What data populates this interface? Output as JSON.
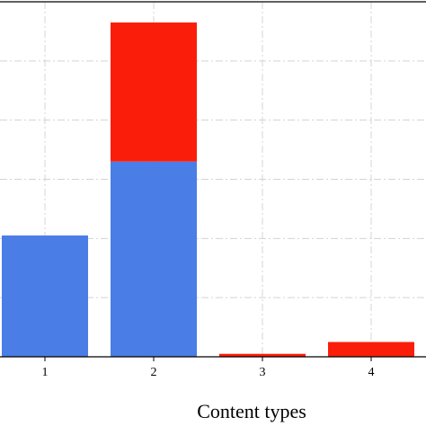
{
  "chart_data": {
    "type": "bar",
    "stacked": true,
    "categories": [
      "1",
      "2",
      "3",
      "4"
    ],
    "series": [
      {
        "color": "#4a7de6",
        "values": [
          41,
          66,
          0,
          0
        ]
      },
      {
        "color": "#fa1e0a",
        "values": [
          0,
          47,
          1,
          5
        ]
      }
    ],
    "xlabel": "Content types",
    "ylabel": "",
    "ylim": [
      0,
      120
    ],
    "grid": true,
    "grid_color": "#d4d4d4",
    "grid_style": "dash-dot"
  }
}
